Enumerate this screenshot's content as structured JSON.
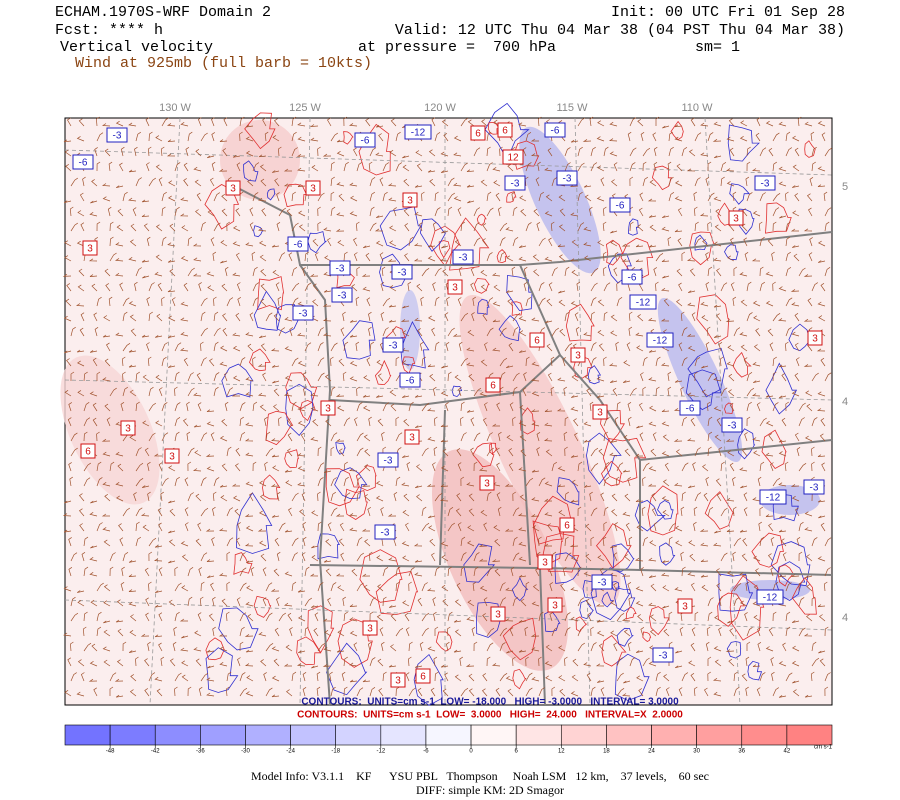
{
  "header": {
    "title": "ECHAM.1970S-WRF Domain 2",
    "init": "Init: 00 UTC Fri 01 Sep 28",
    "forecast": "Fcst: **** h",
    "valid": "Valid: 12 UTC Thu 04 Mar 38 (04 PST Thu 04 Mar 38)",
    "field": "Vertical velocity",
    "level": "at pressure =  700 hPa",
    "smoothing": "sm= 1",
    "wind": "Wind at 925mb (full barb = 10kts)"
  },
  "map": {
    "longitude_labels": [
      "130 W",
      "125 W",
      "120 W",
      "115 W",
      "110 W"
    ],
    "latitude_labels": [
      "5",
      "4",
      "4"
    ],
    "contour_labels": [
      "-3",
      "-6",
      "-6",
      "-12",
      "6",
      "6",
      "-6",
      "12",
      "-3",
      "-3",
      "3",
      "3",
      "3",
      "-6",
      "-3",
      "3",
      "3",
      "-6",
      "-3",
      "-3",
      "-3",
      "-6",
      "-12",
      "-3",
      "-3",
      "3",
      "6",
      "3",
      "-12",
      "3",
      "-3",
      "-6",
      "6",
      "3",
      "3",
      "6",
      "3",
      "3",
      "-3",
      "3",
      "3",
      "-6",
      "-3",
      "-3",
      "-12",
      "-3",
      "6",
      "3",
      "-3",
      "3",
      "-12",
      "3",
      "3",
      "3",
      "-3",
      "3",
      "6"
    ]
  },
  "contours": {
    "negative": "CONTOURS:  UNITS=cm s-1  LOW= -18.000   HIGH= -3.0000   INTERVAL= 3.0000",
    "positive": "CONTOURS:  UNITS=cm s-1  LOW=  3.0000   HIGH=  24.000   INTERVAL=X  2.0000"
  },
  "colorbar": {
    "ticks": [
      -48,
      -42,
      -36,
      -30,
      -24,
      -18,
      -12,
      -6,
      0,
      6,
      12,
      18,
      24,
      30,
      36,
      42
    ],
    "units": "cm s-1"
  },
  "footer": {
    "model_info": "Model Info: V3.1.1    KF      YSU PBL   Thompson     Noah LSM   12 km,    37 levels,    60 sec",
    "diff": "DIFF: simple KM: 2D Smagor"
  }
}
